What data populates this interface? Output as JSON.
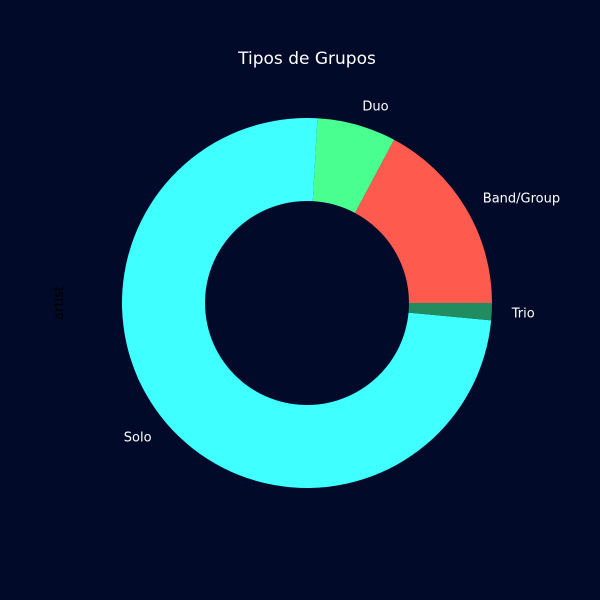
{
  "chart_data": {
    "type": "pie",
    "donut": true,
    "title": "Tipos de Grupos",
    "ylabel": "artist",
    "categories": [
      "Band/Group",
      "Duo",
      "Solo",
      "Trio"
    ],
    "values": [
      17.2,
      6.9,
      74.4,
      1.5
    ],
    "colors": [
      "#ff5a4e",
      "#48ff90",
      "#40ffff",
      "#208c60"
    ]
  },
  "background": "#020a2a"
}
